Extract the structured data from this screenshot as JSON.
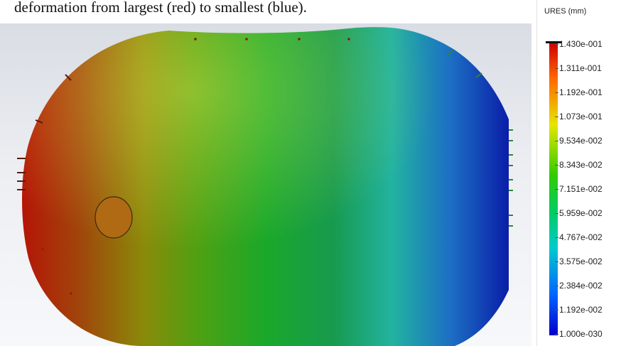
{
  "caption": "deformation from largest (red) to smallest (blue).",
  "legend": {
    "title": "URES (mm)",
    "values": [
      "1.430e-001",
      "1.311e-001",
      "1.192e-001",
      "1.073e-001",
      "9.534e-002",
      "8.343e-002",
      "7.151e-002",
      "5.959e-002",
      "4.767e-002",
      "3.575e-002",
      "2.384e-002",
      "1.192e-002",
      "1.000e-030"
    ]
  },
  "colormap": [
    "#cc0000",
    "#ff6600",
    "#e6e600",
    "#33cc00",
    "#00cc66",
    "#00cccc",
    "#0066ff",
    "#0000cc"
  ]
}
